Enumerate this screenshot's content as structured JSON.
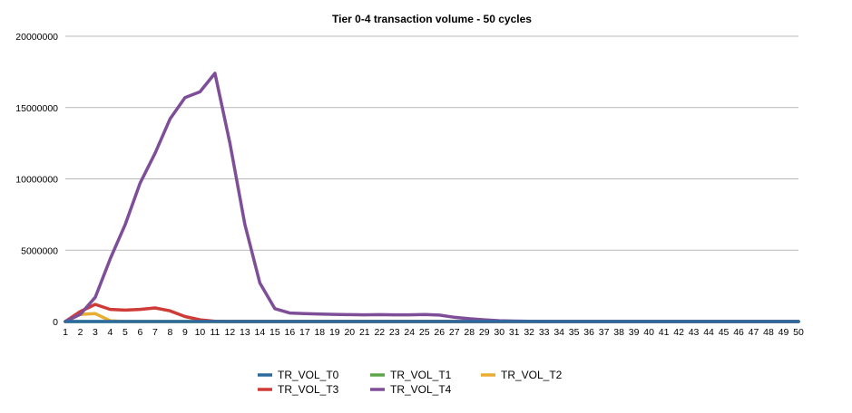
{
  "chart_data": {
    "type": "line",
    "title": "Tier 0-4 transaction volume - 50 cycles",
    "xlabel": "",
    "ylabel": "",
    "x": [
      1,
      2,
      3,
      4,
      5,
      6,
      7,
      8,
      9,
      10,
      11,
      12,
      13,
      14,
      15,
      16,
      17,
      18,
      19,
      20,
      21,
      22,
      23,
      24,
      25,
      26,
      27,
      28,
      29,
      30,
      31,
      32,
      33,
      34,
      35,
      36,
      37,
      38,
      39,
      40,
      41,
      42,
      43,
      44,
      45,
      46,
      47,
      48,
      49,
      50
    ],
    "ylim": [
      0,
      20000000
    ],
    "yticks": [
      "0",
      "5000000",
      "10000000",
      "15000000",
      "20000000"
    ],
    "ytick_values": [
      0,
      5000000,
      10000000,
      15000000,
      20000000
    ],
    "grid": true,
    "legend_position": "bottom",
    "series": [
      {
        "name": "TR_VOL_T0",
        "color": "#2b6a9e",
        "values": [
          0,
          0,
          0,
          0,
          0,
          0,
          0,
          0,
          0,
          0,
          0,
          0,
          0,
          0,
          0,
          0,
          0,
          0,
          0,
          0,
          0,
          0,
          0,
          0,
          0,
          0,
          0,
          0,
          0,
          0,
          0,
          0,
          0,
          0,
          0,
          0,
          0,
          0,
          0,
          0,
          0,
          0,
          0,
          0,
          0,
          0,
          0,
          0,
          0,
          0
        ]
      },
      {
        "name": "TR_VOL_T1",
        "color": "#5aa54a",
        "values": [
          0,
          0,
          0,
          0,
          0,
          0,
          0,
          0,
          0,
          0,
          0,
          0,
          0,
          0,
          0,
          0,
          0,
          0,
          0,
          0,
          0,
          0,
          0,
          0,
          0,
          0,
          0,
          0,
          0,
          0,
          0,
          0,
          0,
          0,
          0,
          0,
          0,
          0,
          0,
          0,
          0,
          0,
          0,
          0,
          0,
          0,
          0,
          0,
          0,
          0
        ]
      },
      {
        "name": "TR_VOL_T2",
        "color": "#e8ad31",
        "values": [
          0,
          500000,
          550000,
          50000,
          0,
          0,
          0,
          0,
          0,
          0,
          0,
          0,
          0,
          0,
          0,
          0,
          0,
          0,
          0,
          0,
          0,
          0,
          0,
          0,
          0,
          0,
          0,
          0,
          0,
          0,
          0,
          0,
          0,
          0,
          0,
          0,
          0,
          0,
          0,
          0,
          0,
          0,
          0,
          0,
          0,
          0,
          0,
          0,
          0,
          0
        ]
      },
      {
        "name": "TR_VOL_T3",
        "color": "#cf3b36",
        "values": [
          0,
          700000,
          1200000,
          850000,
          800000,
          850000,
          950000,
          750000,
          350000,
          120000,
          20000,
          0,
          0,
          0,
          0,
          0,
          0,
          0,
          0,
          0,
          0,
          0,
          0,
          0,
          0,
          0,
          0,
          0,
          0,
          0,
          0,
          0,
          0,
          0,
          0,
          0,
          0,
          0,
          0,
          0,
          0,
          0,
          0,
          0,
          0,
          0,
          0,
          0,
          0,
          0
        ]
      },
      {
        "name": "TR_VOL_T4",
        "color": "#7e4f98",
        "values": [
          0,
          500000,
          1700000,
          4400000,
          6800000,
          9700000,
          11800000,
          14200000,
          15700000,
          16100000,
          17400000,
          12500000,
          6800000,
          2700000,
          900000,
          600000,
          550000,
          520000,
          500000,
          480000,
          470000,
          480000,
          470000,
          470000,
          490000,
          450000,
          300000,
          200000,
          120000,
          60000,
          30000,
          10000,
          0,
          0,
          0,
          0,
          0,
          0,
          0,
          0,
          0,
          0,
          0,
          0,
          0,
          0,
          0,
          0,
          0,
          0
        ]
      }
    ]
  }
}
